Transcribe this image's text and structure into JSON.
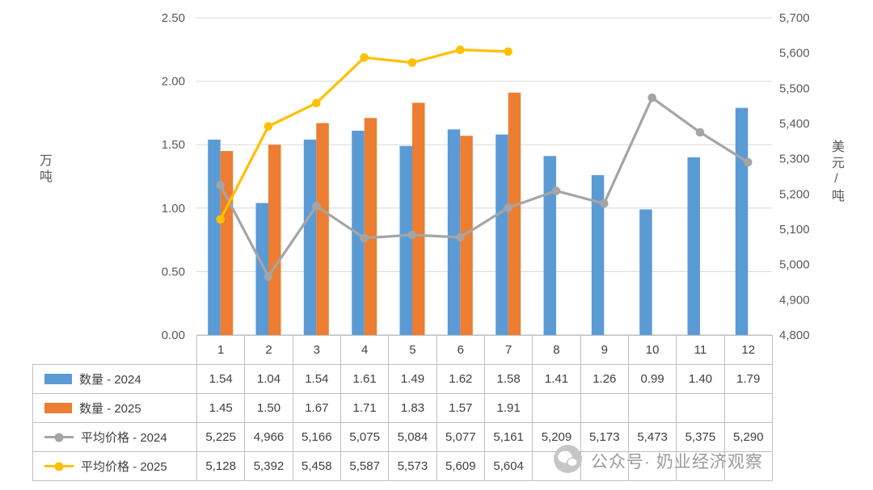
{
  "chart_data": {
    "type": "combo-bar-line",
    "title": "",
    "grid": "horizontal",
    "legend_position": "table-left-column",
    "categories": [
      "1",
      "2",
      "3",
      "4",
      "5",
      "6",
      "7",
      "8",
      "9",
      "10",
      "11",
      "12"
    ],
    "left_axis": {
      "label": "万吨",
      "min": 0,
      "max": 2.5,
      "step": 0.5,
      "ticks": [
        "0.00",
        "0.50",
        "1.00",
        "1.50",
        "2.00",
        "2.50"
      ]
    },
    "right_axis": {
      "label": "美元/吨",
      "min": 4800,
      "max": 5700,
      "step": 100,
      "ticks": [
        "4,800",
        "4,900",
        "5,000",
        "5,100",
        "5,200",
        "5,300",
        "5,400",
        "5,500",
        "5,600",
        "5,700"
      ]
    },
    "series": [
      {
        "name": "数量 - 2024",
        "year": "2024",
        "type": "bar",
        "axis": "left",
        "color": "#5B9BD5",
        "values": [
          1.54,
          1.04,
          1.54,
          1.61,
          1.49,
          1.62,
          1.58,
          1.41,
          1.26,
          0.99,
          1.4,
          1.79
        ],
        "cells": [
          "1.54",
          "1.04",
          "1.54",
          "1.61",
          "1.49",
          "1.62",
          "1.58",
          "1.41",
          "1.26",
          "0.99",
          "1.40",
          "1.79"
        ]
      },
      {
        "name": "数量 - 2025",
        "year": "2025",
        "type": "bar",
        "axis": "left",
        "color": "#ED7D31",
        "values": [
          1.45,
          1.5,
          1.67,
          1.71,
          1.83,
          1.57,
          1.91
        ],
        "cells": [
          "1.45",
          "1.50",
          "1.67",
          "1.71",
          "1.83",
          "1.57",
          "1.91",
          "",
          "",
          "",
          "",
          ""
        ]
      },
      {
        "name": "平均价格 - 2024",
        "year": "2024",
        "type": "line",
        "axis": "right",
        "color": "#A5A5A5",
        "values": [
          5225,
          4966,
          5166,
          5075,
          5084,
          5077,
          5161,
          5209,
          5173,
          5473,
          5375,
          5290
        ],
        "cells": [
          "5,225",
          "4,966",
          "5,166",
          "5,075",
          "5,084",
          "5,077",
          "5,161",
          "5,209",
          "5,173",
          "5,473",
          "5,375",
          "5,290"
        ]
      },
      {
        "name": "平均价格 - 2025",
        "year": "2025",
        "type": "line",
        "axis": "right",
        "color": "#FFC000",
        "values": [
          5128,
          5392,
          5458,
          5587,
          5573,
          5609,
          5604
        ],
        "cells": [
          "5,128",
          "5,392",
          "5,458",
          "5,587",
          "5,573",
          "5,609",
          "5,604",
          "",
          "",
          "",
          "",
          ""
        ]
      }
    ]
  },
  "watermark": {
    "text": "公众号· 奶业经济观察",
    "icon": "wechat-official-account-icon"
  }
}
